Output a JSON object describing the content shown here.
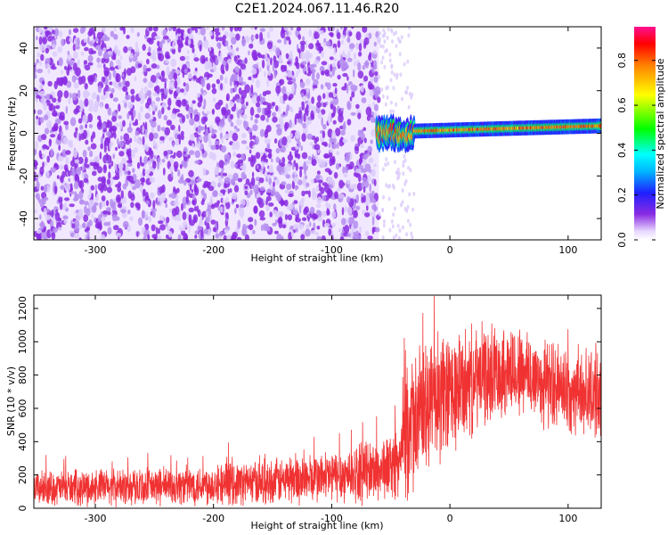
{
  "title": "C2E1.2024.067.11.46.R20",
  "chart_data": [
    {
      "type": "heatmap",
      "name": "spectrogram",
      "xlabel": "Height of straight line (km)",
      "ylabel": "Frequency (Hz)",
      "xlim": [
        -352,
        128
      ],
      "ylim": [
        -50,
        50
      ],
      "xticks": [
        -300,
        -200,
        -100,
        0,
        100
      ],
      "yticks": [
        -40,
        -20,
        0,
        20,
        40
      ],
      "description_regions": {
        "noise_floor_x_range": [
          -352,
          -60
        ],
        "signal_x_range": [
          -62,
          128
        ],
        "signal_center_freq_hz": [
          0,
          4
        ]
      },
      "colorbar": {
        "label": "Normalized spectral amplitude",
        "range": [
          0,
          0.95
        ],
        "ticks": [
          0.0,
          0.2,
          0.4,
          0.6,
          0.8
        ]
      }
    },
    {
      "type": "line",
      "name": "snr",
      "xlabel": "Height of straight line (km)",
      "ylabel": "SNR (10 * v/v)",
      "xlim": [
        -352,
        128
      ],
      "ylim": [
        0,
        1280
      ],
      "xticks": [
        -300,
        -200,
        -100,
        0,
        100
      ],
      "yticks": [
        0,
        200,
        400,
        600,
        800,
        1000,
        1200
      ],
      "color": "#f03232",
      "envelope_profile": {
        "x": [
          -352,
          -250,
          -150,
          -100,
          -60,
          -42,
          -38,
          -30,
          -20,
          -10,
          0,
          20,
          40,
          60,
          80,
          100,
          128
        ],
        "mean": [
          120,
          130,
          160,
          190,
          230,
          280,
          420,
          520,
          600,
          640,
          680,
          760,
          830,
          820,
          760,
          700,
          690
        ],
        "spread": [
          90,
          100,
          120,
          140,
          170,
          180,
          330,
          360,
          350,
          340,
          330,
          280,
          250,
          250,
          240,
          220,
          240
        ]
      }
    }
  ]
}
